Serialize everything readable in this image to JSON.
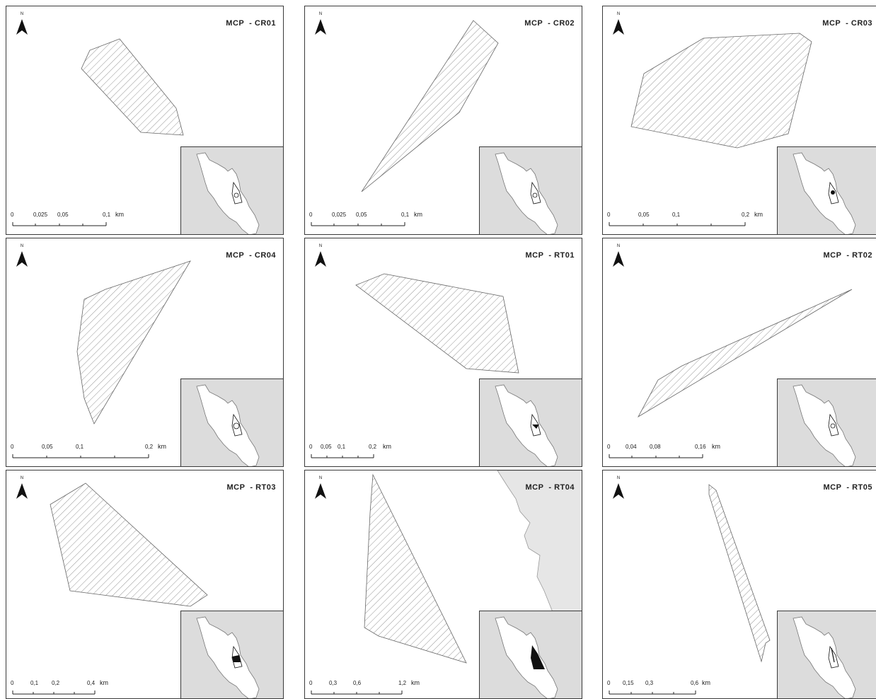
{
  "panels": [
    {
      "title": "MCP  - CR01",
      "north": "N",
      "scale": {
        "labels": [
          "0",
          "0,025",
          "0,05",
          "0,1"
        ],
        "unit": "km"
      }
    },
    {
      "title": "MCP  - CR02",
      "north": "N",
      "scale": {
        "labels": [
          "0",
          "0,025",
          "0,05",
          "0,1"
        ],
        "unit": "km"
      }
    },
    {
      "title": "MCP  - CR03",
      "north": "N",
      "scale": {
        "labels": [
          "0",
          "0,05",
          "0,1",
          "0,2"
        ],
        "unit": "km"
      }
    },
    {
      "title": "MCP  - CR04",
      "north": "N",
      "scale": {
        "labels": [
          "0",
          "0,05",
          "0,1",
          "0,2"
        ],
        "unit": "km"
      }
    },
    {
      "title": "MCP  - RT01",
      "north": "N",
      "scale": {
        "labels": [
          "0",
          "0,05",
          "0,1",
          "0,2"
        ],
        "unit": "km"
      }
    },
    {
      "title": "MCP  - RT02",
      "north": "N",
      "scale": {
        "labels": [
          "0",
          "0,04",
          "0,08",
          "0,16"
        ],
        "unit": "km"
      }
    },
    {
      "title": "MCP  - RT03",
      "north": "N",
      "scale": {
        "labels": [
          "0",
          "0,1",
          "0,2",
          "0,4"
        ],
        "unit": "km"
      }
    },
    {
      "title": "MCP  - RT04",
      "north": "N",
      "scale": {
        "labels": [
          "0",
          "0,3",
          "0,6",
          "1,2"
        ],
        "unit": "km"
      }
    },
    {
      "title": "MCP  - RT05",
      "north": "N",
      "scale": {
        "labels": [
          "0",
          "0,15",
          "0,3",
          "0,6"
        ],
        "unit": "km"
      }
    }
  ],
  "colors": {
    "hatch": "#7a7a7a",
    "border": "#3a3a3a",
    "inset_bg": "#dcdcdc",
    "island": "#ffffff",
    "coast_bg": "#e6e6e6"
  },
  "icons": {
    "north": "north-arrow-icon"
  }
}
